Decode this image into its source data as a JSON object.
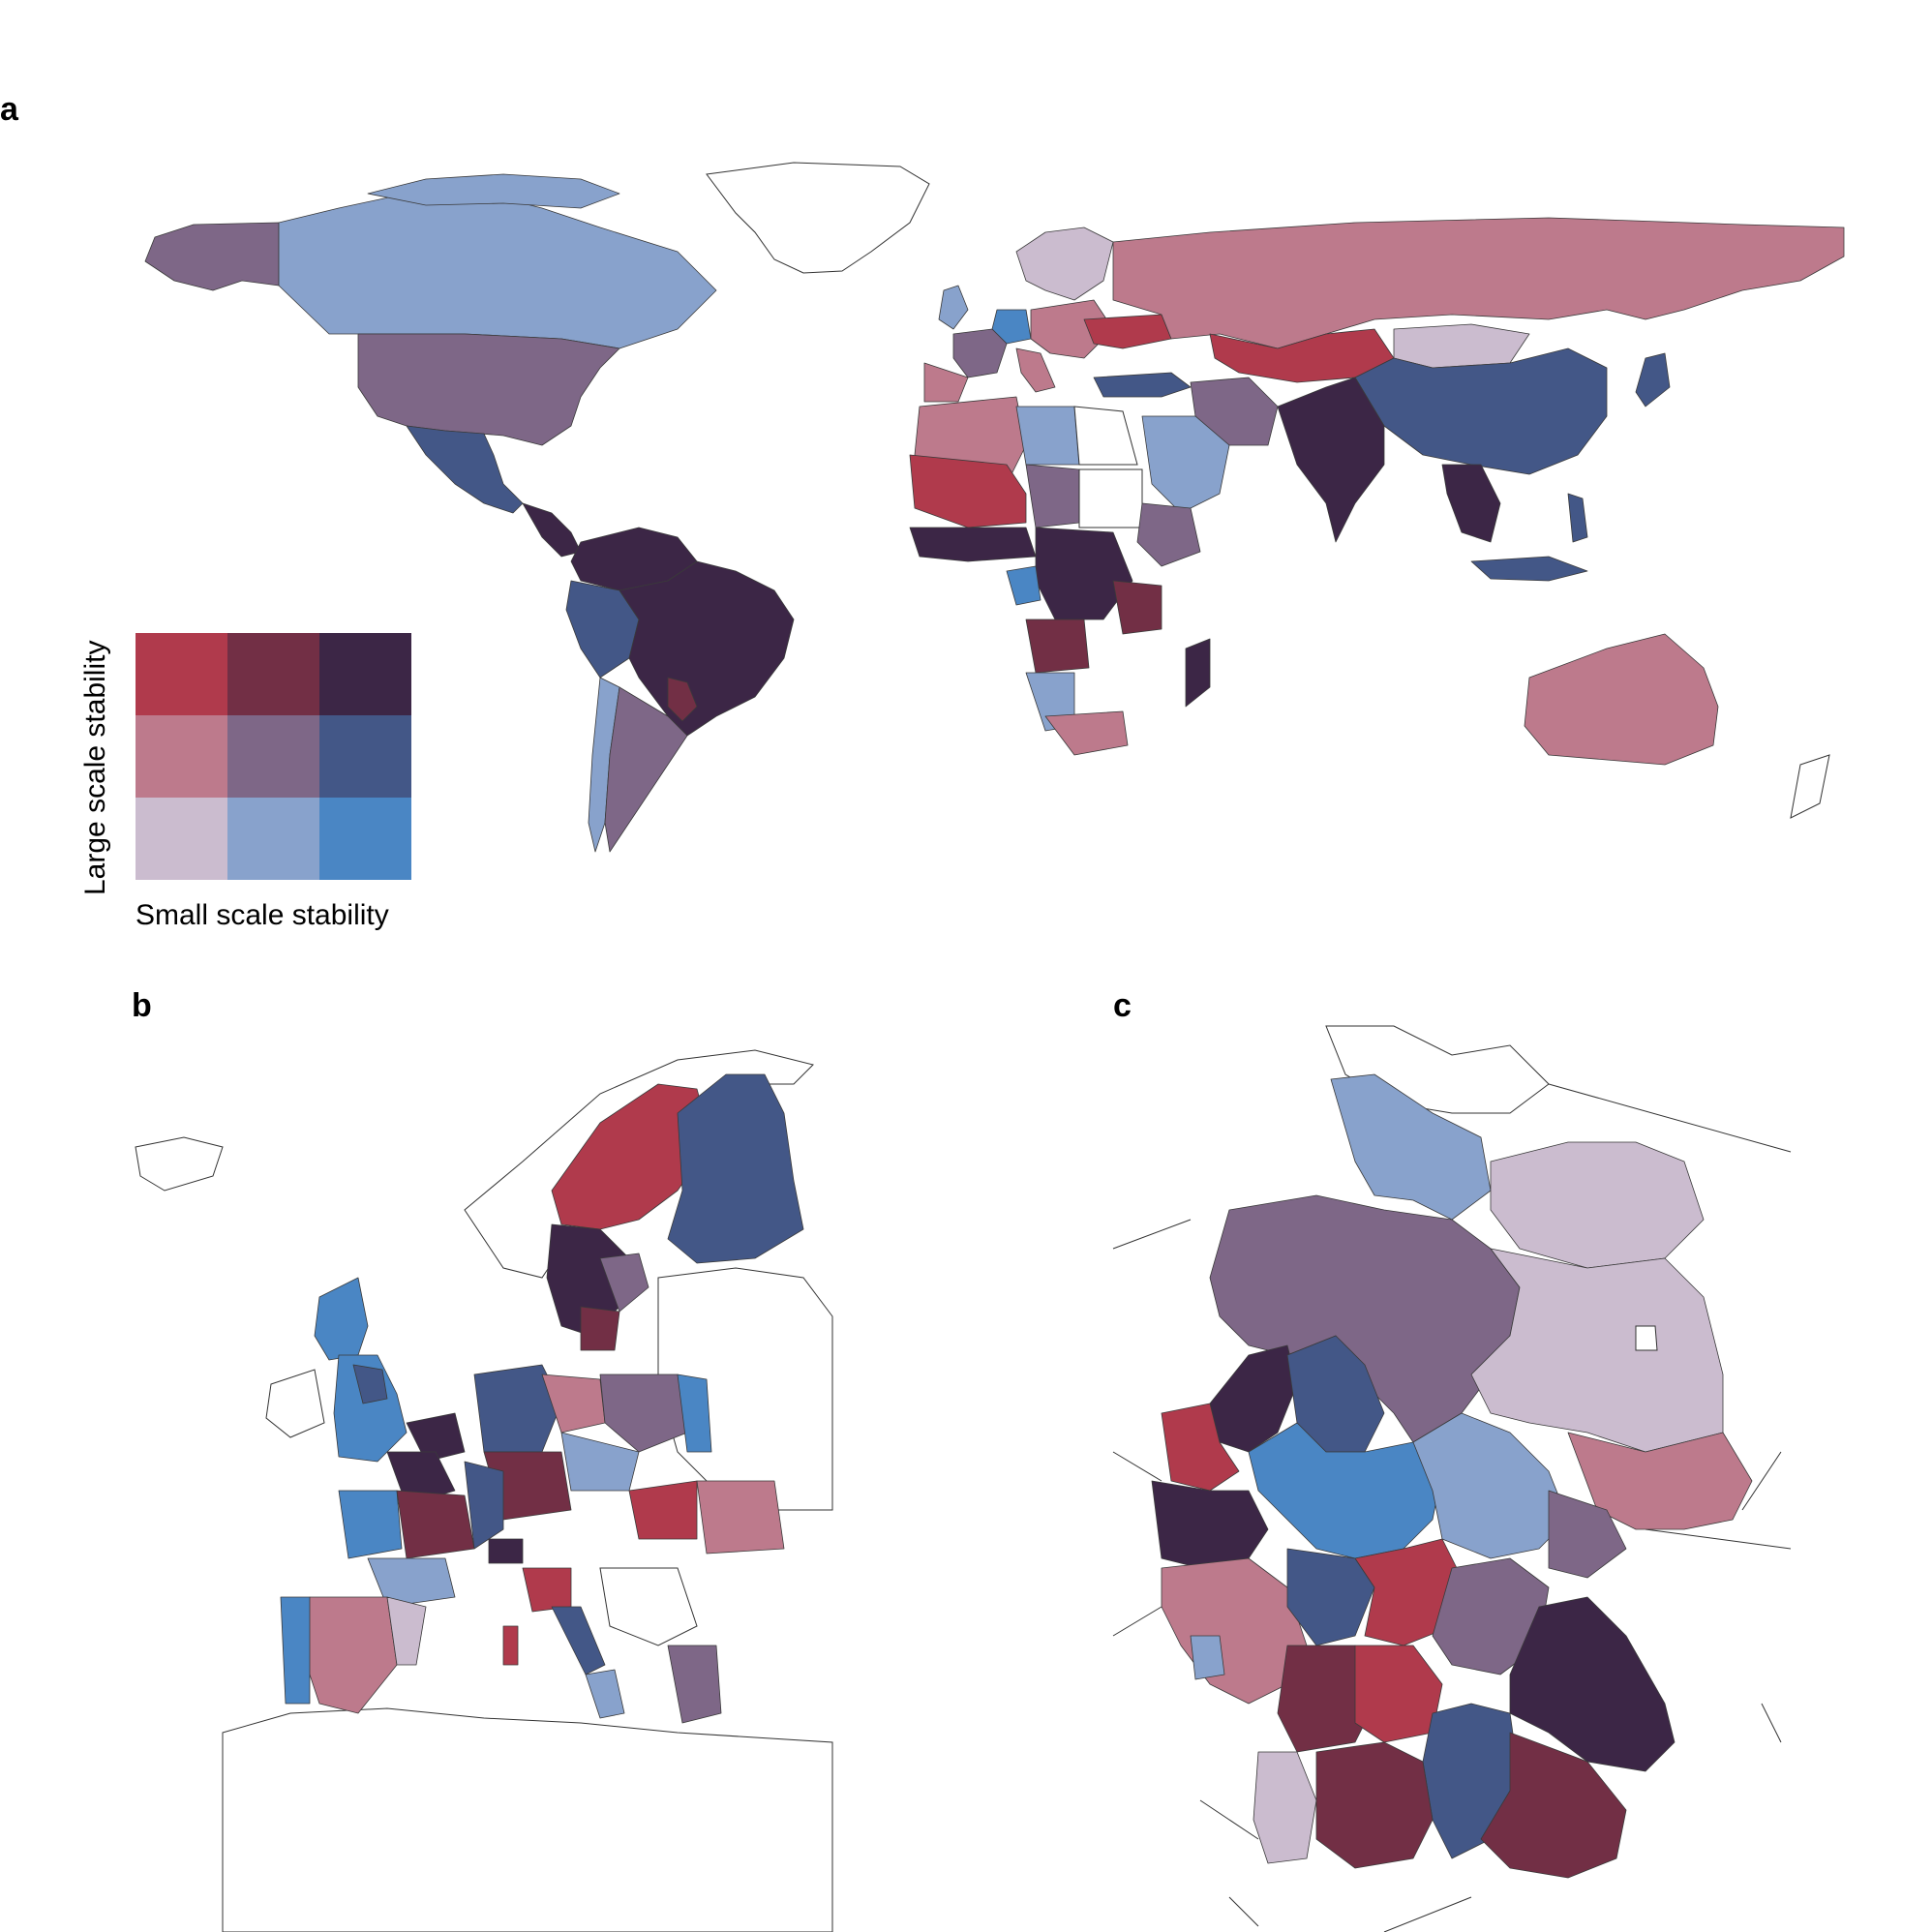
{
  "figure": {
    "panel_labels": {
      "a": "a",
      "b": "b",
      "c": "c"
    }
  },
  "legend": {
    "ylabel": "Large scale stability",
    "xlabel": "Small scale stability",
    "palette": {
      "low_low": "#cbbccf",
      "low_mid": "#88a2cc",
      "low_high": "#4a86c4",
      "mid_low": "#bd7a8c",
      "mid_mid": "#7e6787",
      "mid_high": "#435787",
      "high_low": "#b03a4c",
      "high_mid": "#722f45",
      "high_high": "#3c2646"
    },
    "grid": [
      [
        "high_low",
        "high_mid",
        "high_high"
      ],
      [
        "mid_low",
        "mid_mid",
        "mid_high"
      ],
      [
        "low_low",
        "low_mid",
        "low_high"
      ]
    ]
  },
  "chart_data": {
    "type": "choropleth-bivariate",
    "panels": [
      "world",
      "europe",
      "germany"
    ]
  }
}
